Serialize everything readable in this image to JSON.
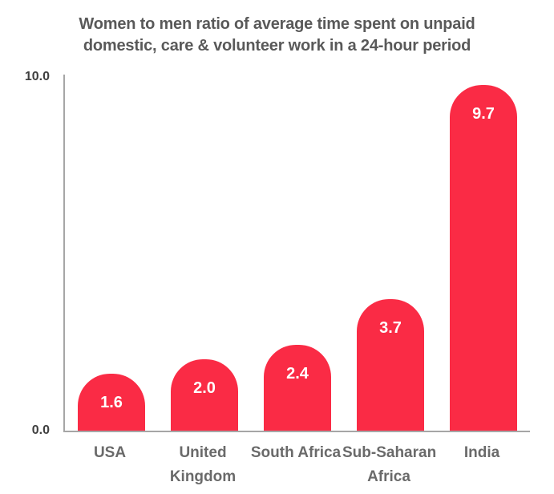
{
  "title": {
    "lines": [
      "Women to men ratio of average time spent on unpaid",
      "domestic, care & volunteer work in a 24-hour period"
    ]
  },
  "y_axis": {
    "top_tick": "10.0",
    "bottom_tick": "0.0"
  },
  "chart_data": {
    "type": "bar",
    "title": "Women to men ratio of average time spent on unpaid domestic, care & volunteer work in a 24-hour period",
    "categories": [
      "USA",
      "United Kingdom",
      "South Africa",
      "Sub-Saharan Africa",
      "India"
    ],
    "category_label_lines": [
      [
        "USA"
      ],
      [
        "United",
        "Kingdom"
      ],
      [
        "South Africa"
      ],
      [
        "Sub-Saharan",
        "Africa"
      ],
      [
        "India"
      ]
    ],
    "values": [
      1.6,
      2.0,
      2.4,
      3.7,
      9.7
    ],
    "data_labels": [
      "1.6",
      "2.0",
      "2.4",
      "3.7",
      "9.7"
    ],
    "xlabel": "",
    "ylabel": "",
    "ylim": [
      0,
      10
    ],
    "ytick_labels": [
      "0.0",
      "10.0"
    ],
    "grid": false,
    "legend": false,
    "colors": {
      "bar": "#FA2B45",
      "axis": "#A6A6A6",
      "title": "#595959",
      "tick": "#3F3F3F",
      "category": "#6A6A6A",
      "value_label": "#FFFFFF"
    }
  }
}
